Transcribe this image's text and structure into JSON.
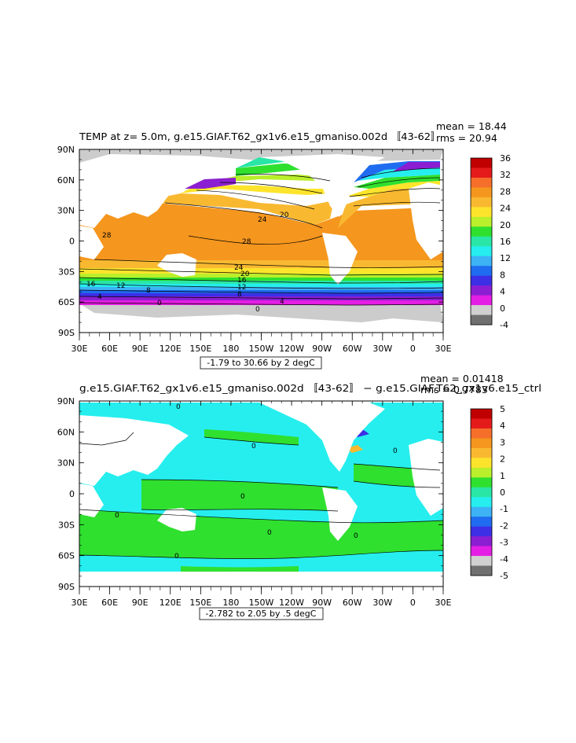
{
  "panels": [
    {
      "id": "top",
      "title": "TEMP at z=    5.0m, g.e15.GIAF.T62_gx1v6.e15_gmaniso.002d 〚43-62〛",
      "mean_text": "mean = 18.44",
      "rms_text": "rms = 20.94",
      "range_text": "-1.79 to 30.66 by 2 degC",
      "lat_labels": [
        "90N",
        "60N",
        "30N",
        "0",
        "30S",
        "60S",
        "90S"
      ],
      "lon_labels": [
        "30E",
        "60E",
        "90E",
        "120E",
        "150E",
        "180",
        "150W",
        "120W",
        "90W",
        "60W",
        "30W",
        "0",
        "30E"
      ],
      "colorbar_labels": [
        "36",
        "32",
        "28",
        "24",
        "20",
        "16",
        "12",
        "8",
        "4",
        "0",
        "-4"
      ],
      "colorbar_colors": [
        "#c00000",
        "#e51a1a",
        "#f56e2a",
        "#f5961e",
        "#f8b931",
        "#fde42c",
        "#b9ef2b",
        "#2fe02f",
        "#29e6a6",
        "#26eeee",
        "#3db2f5",
        "#1f6cf0",
        "#3c2fe6",
        "#8b1ed2",
        "#e41ee4",
        "#d0d0d0",
        "#707070"
      ],
      "contour_labels": [
        "28",
        "24",
        "20",
        "28",
        "24",
        "20",
        "16",
        "12",
        "8",
        "4",
        "0",
        "16",
        "12",
        "8",
        "0",
        "4"
      ],
      "land_color": "#ffffff",
      "mask_color": "#cccccc"
    },
    {
      "id": "bottom",
      "title": "g.e15.GIAF.T62_gx1v6.e15_gmaniso.002d 〚43-62〛 − g.e15.GIAF.T62_gx1v6.e15_ctrl",
      "mean_text": "mean = 0.01418",
      "rms_text": "rms = 0.7783",
      "range_text": "-2.782 to 2.05 by .5 degC",
      "lat_labels": [
        "90N",
        "60N",
        "30N",
        "0",
        "30S",
        "60S",
        "90S"
      ],
      "lon_labels": [
        "30E",
        "60E",
        "90E",
        "120E",
        "150E",
        "180",
        "150W",
        "120W",
        "90W",
        "60W",
        "30W",
        "0",
        "30E"
      ],
      "colorbar_labels": [
        "5",
        "4",
        "3",
        "2",
        "1",
        "0",
        "-1",
        "-2",
        "-3",
        "-4",
        "-5"
      ],
      "colorbar_colors": [
        "#c00000",
        "#e51a1a",
        "#f56e2a",
        "#f5961e",
        "#f8b931",
        "#fde42c",
        "#b9ef2b",
        "#2fe02f",
        "#29e6a6",
        "#26eeee",
        "#3db2f5",
        "#1f6cf0",
        "#3c2fe6",
        "#8b1ed2",
        "#e41ee4",
        "#d0d0d0",
        "#707070"
      ],
      "contour_labels": [
        "0",
        "0",
        "0",
        "0",
        "0",
        "0",
        "0",
        "0"
      ],
      "cyan": "#26eeee",
      "green": "#2fe02f",
      "land_color": "#ffffff"
    }
  ]
}
